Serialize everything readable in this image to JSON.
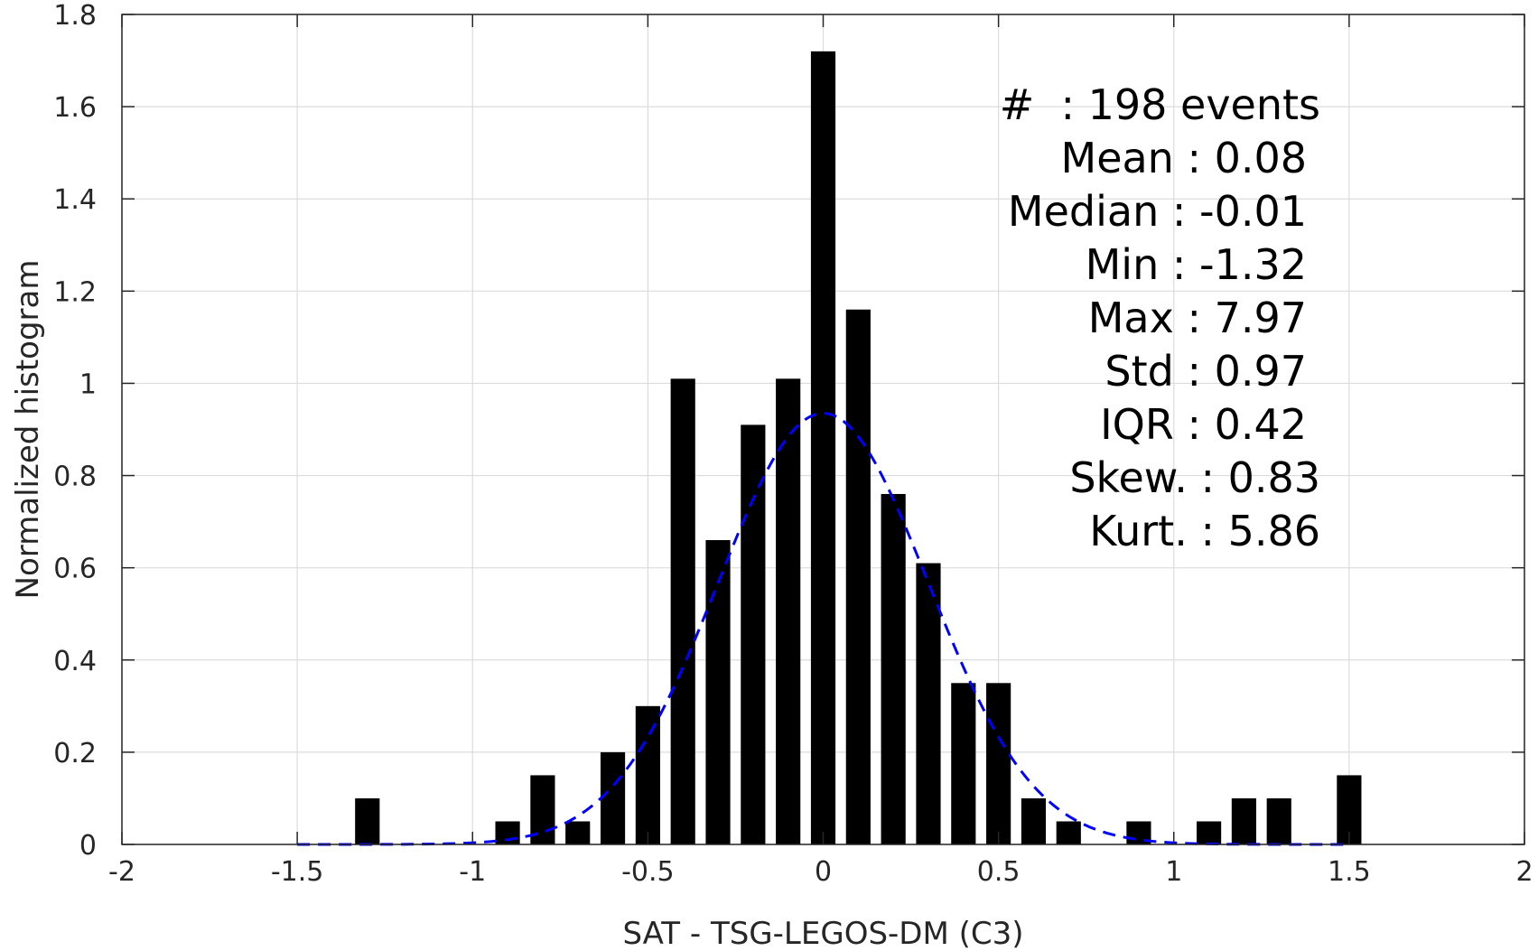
{
  "chart_data": {
    "type": "bar",
    "xlabel": "SAT - TSG-LEGOS-DM (C3)",
    "ylabel": "Normalized histogram",
    "xlim": [
      -2,
      2
    ],
    "ylim": [
      0,
      1.8
    ],
    "xticks": [
      -2,
      -1.5,
      -1,
      -0.5,
      0,
      0.5,
      1,
      1.5,
      2
    ],
    "xtick_labels": [
      "-2",
      "-1.5",
      "-1",
      "-0.5",
      "0",
      "0.5",
      "1",
      "1.5",
      "2"
    ],
    "yticks": [
      0,
      0.2,
      0.4,
      0.6,
      0.8,
      1,
      1.2,
      1.4,
      1.6,
      1.8
    ],
    "ytick_labels": [
      "0",
      "0.2",
      "0.4",
      "0.6",
      "0.8",
      "1",
      "1.2",
      "1.4",
      "1.6",
      "1.8"
    ],
    "grid": true,
    "bar_width": 0.07,
    "bar_color": "#000000",
    "bars": [
      {
        "x": -1.3,
        "y": 0.1
      },
      {
        "x": -0.9,
        "y": 0.05
      },
      {
        "x": -0.8,
        "y": 0.15
      },
      {
        "x": -0.7,
        "y": 0.05
      },
      {
        "x": -0.6,
        "y": 0.2
      },
      {
        "x": -0.5,
        "y": 0.3
      },
      {
        "x": -0.4,
        "y": 1.01
      },
      {
        "x": -0.3,
        "y": 0.66
      },
      {
        "x": -0.2,
        "y": 0.91
      },
      {
        "x": -0.1,
        "y": 1.01
      },
      {
        "x": 0.0,
        "y": 1.72
      },
      {
        "x": 0.1,
        "y": 1.16
      },
      {
        "x": 0.2,
        "y": 0.76
      },
      {
        "x": 0.3,
        "y": 0.61
      },
      {
        "x": 0.4,
        "y": 0.35
      },
      {
        "x": 0.5,
        "y": 0.35
      },
      {
        "x": 0.6,
        "y": 0.1
      },
      {
        "x": 0.7,
        "y": 0.05
      },
      {
        "x": 0.9,
        "y": 0.05
      },
      {
        "x": 1.1,
        "y": 0.05
      },
      {
        "x": 1.2,
        "y": 0.1
      },
      {
        "x": 1.3,
        "y": 0.1
      },
      {
        "x": 1.5,
        "y": 0.15
      }
    ],
    "fit_curve": {
      "style": "dashed",
      "color": "#0000ff",
      "mean": 0.0,
      "peak": 0.935,
      "sigma": 0.3,
      "x_range": [
        -1.5,
        1.5
      ]
    },
    "annotations": [
      "#  : 198 events",
      "Mean : 0.08",
      "Median : -0.01",
      "Min : -1.32",
      "Max : 7.97",
      "Std : 0.97",
      "IQR : 0.42",
      "Skew. : 0.83",
      "Kurt. : 5.86"
    ]
  }
}
